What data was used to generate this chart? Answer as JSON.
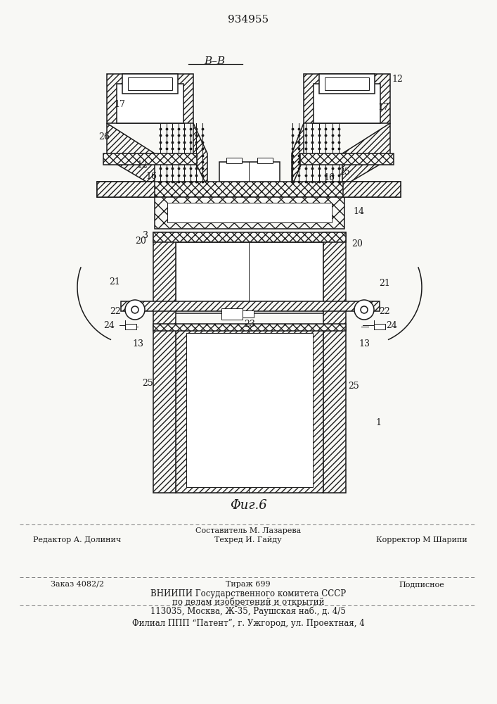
{
  "title": "934955",
  "section_label": "B–B",
  "fig_label": "Φиг.6",
  "bg_color": "#f8f8f5",
  "line_color": "#1a1a1a",
  "footer_lines": [
    "Составитель М. Лазарева",
    "Техред И. Гайду",
    "Редактор А. Долинич",
    "Корректор М Шарипи",
    "Заказ 4082/2",
    "Тираж 699",
    "Подписное",
    "ВНИИПИ Государственного комитета СССР",
    "по делам изобретений и открытий",
    "113035, Москва, Ж-35, Раушская наб., д. 4/5",
    "Филиал ППП “Патент”, г. Ужгород, ул. Проектная, 4"
  ]
}
